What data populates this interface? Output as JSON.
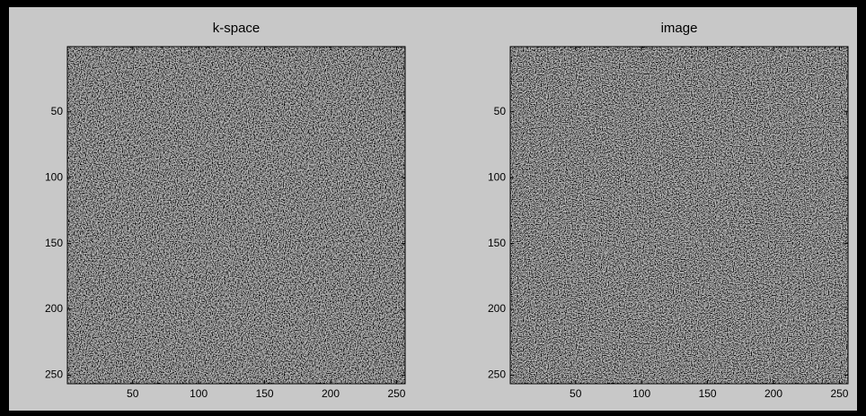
{
  "chart_data": [
    {
      "type": "image",
      "title": "k-space",
      "xlim": [
        0.5,
        256.5
      ],
      "ylim": [
        0.5,
        256.5
      ],
      "reverse_y": true,
      "xticks": [
        50,
        100,
        150,
        200,
        250
      ],
      "yticks": [
        50,
        100,
        150,
        200,
        250
      ]
    },
    {
      "type": "image",
      "title": "image",
      "xlim": [
        0.5,
        256.5
      ],
      "ylim": [
        0.5,
        256.5
      ],
      "reverse_y": true,
      "xticks": [
        50,
        100,
        150,
        200,
        250
      ],
      "yticks": [
        50,
        100,
        150,
        200,
        250
      ]
    }
  ]
}
